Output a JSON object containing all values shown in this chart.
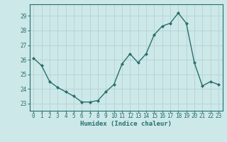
{
  "x": [
    0,
    1,
    2,
    3,
    4,
    5,
    6,
    7,
    8,
    9,
    10,
    11,
    12,
    13,
    14,
    15,
    16,
    17,
    18,
    19,
    20,
    21,
    22,
    23
  ],
  "y": [
    26.1,
    25.6,
    24.5,
    24.1,
    23.8,
    23.5,
    23.1,
    23.1,
    23.2,
    23.8,
    24.3,
    25.7,
    26.4,
    25.8,
    26.4,
    27.7,
    28.3,
    28.5,
    29.2,
    28.5,
    25.8,
    24.2,
    24.5,
    24.3
  ],
  "line_color": "#2a6e6e",
  "marker": "D",
  "marker_size": 2.0,
  "bg_color": "#cce8e8",
  "grid_color": "#b8d4d4",
  "tick_color": "#2a6e6e",
  "xlabel": "Humidex (Indice chaleur)",
  "ylim": [
    22.5,
    29.8
  ],
  "yticks": [
    23,
    24,
    25,
    26,
    27,
    28,
    29
  ],
  "xticks": [
    0,
    1,
    2,
    3,
    4,
    5,
    6,
    7,
    8,
    9,
    10,
    11,
    12,
    13,
    14,
    15,
    16,
    17,
    18,
    19,
    20,
    21,
    22,
    23
  ],
  "xlabel_fontsize": 6.5,
  "tick_fontsize": 5.5,
  "linewidth": 1.0
}
